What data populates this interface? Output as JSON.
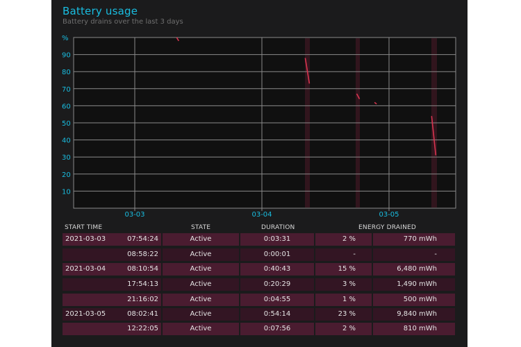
{
  "header": {
    "title": "Battery usage",
    "subtitle": "Battery drains over the last 3 days"
  },
  "chart_data": {
    "type": "line",
    "y_unit_label": "%",
    "ylim": [
      0,
      100
    ],
    "y_ticks": [
      "90",
      "80",
      "70",
      "60",
      "50",
      "40",
      "30",
      "20",
      "10"
    ],
    "x_ticks": [
      "03-03",
      "03-04",
      "03-05"
    ],
    "grid": true,
    "line_color": "#d8344f",
    "segments": [
      {
        "start": "2021-03-03 07:54:24",
        "from": 100,
        "to": 98
      },
      {
        "start": "2021-03-04 08:10:54",
        "from": 88,
        "to": 73
      },
      {
        "start": "2021-03-04 17:54:13",
        "from": 67,
        "to": 64
      },
      {
        "start": "2021-03-04 21:16:02",
        "from": 62,
        "to": 61
      },
      {
        "start": "2021-03-05 08:02:41",
        "from": 54,
        "to": 31
      }
    ]
  },
  "table": {
    "headers": {
      "start_time": "START TIME",
      "state": "STATE",
      "duration": "DURATION",
      "energy_drained": "ENERGY DRAINED"
    },
    "rows": [
      {
        "date": "2021-03-03",
        "time": "07:54:24",
        "state": "Active",
        "duration": "0:03:31",
        "percent": "2 %",
        "energy": "770 mWh"
      },
      {
        "date": "",
        "time": "08:58:22",
        "state": "Active",
        "duration": "0:00:01",
        "percent": "-",
        "energy": "-"
      },
      {
        "date": "2021-03-04",
        "time": "08:10:54",
        "state": "Active",
        "duration": "0:40:43",
        "percent": "15 %",
        "energy": "6,480 mWh"
      },
      {
        "date": "",
        "time": "17:54:13",
        "state": "Active",
        "duration": "0:20:29",
        "percent": "3 %",
        "energy": "1,490 mWh"
      },
      {
        "date": "",
        "time": "21:16:02",
        "state": "Active",
        "duration": "0:04:55",
        "percent": "1 %",
        "energy": "500 mWh"
      },
      {
        "date": "2021-03-05",
        "time": "08:02:41",
        "state": "Active",
        "duration": "0:54:14",
        "percent": "23 %",
        "energy": "9,840 mWh"
      },
      {
        "date": "",
        "time": "12:22:05",
        "state": "Active",
        "duration": "0:07:56",
        "percent": "2 %",
        "energy": "810 mWh"
      }
    ]
  }
}
